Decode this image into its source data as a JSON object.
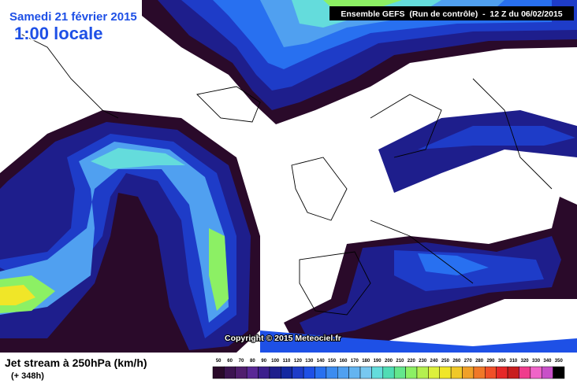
{
  "header": {
    "date": "Samedi 21 février 2015",
    "time": "1:00 locale"
  },
  "run": "Ensemble GEFS  (Run de contrôle)  -  12 Z du 06/02/2015",
  "copyright": "Copyright © 2015 Meteociel.fr",
  "legend": {
    "title": "Jet stream à 250hPa (km/h)",
    "lead": "(+ 348h)",
    "labels": [
      50,
      60,
      70,
      80,
      90,
      100,
      110,
      120,
      130,
      140,
      150,
      160,
      170,
      180,
      190,
      200,
      210,
      220,
      230,
      240,
      250,
      260,
      270,
      280,
      290,
      300,
      310,
      320,
      330,
      340,
      350
    ],
    "colors": [
      "#2a0a2a",
      "#3c1450",
      "#501e6e",
      "#5a2896",
      "#3c1e8c",
      "#1e1e8c",
      "#1428a0",
      "#1e3cc8",
      "#1e50e6",
      "#2870f0",
      "#3c8cf0",
      "#50a0f0",
      "#64b4f0",
      "#78c8f0",
      "#64dcdc",
      "#50dcb4",
      "#64e68c",
      "#8cf064",
      "#b4f050",
      "#dcf03c",
      "#f0e628",
      "#f0c828",
      "#f0a028",
      "#f07828",
      "#f05028",
      "#e62828",
      "#c81e1e",
      "#f03c8c",
      "#f064c8",
      "#c850c8",
      "#000000"
    ]
  }
}
